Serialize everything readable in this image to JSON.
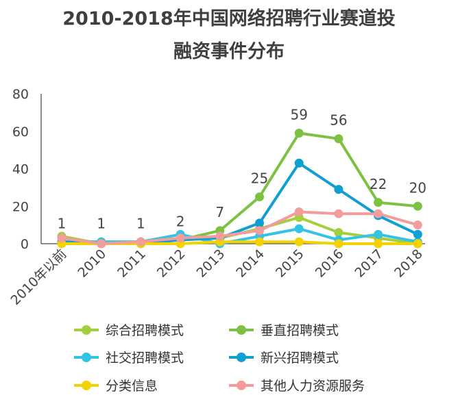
{
  "chart_data": {
    "type": "line",
    "title_lines": [
      "2010-2018年中国网络招聘行业赛道投",
      "融资事件分布"
    ],
    "categories": [
      "2010年以前",
      "2010",
      "2011",
      "2012",
      "2013",
      "2014",
      "2015",
      "2016",
      "2017",
      "2018"
    ],
    "ylim": [
      0,
      80
    ],
    "yticks": [
      0,
      20,
      40,
      60,
      80
    ],
    "grid": false,
    "legend_position": "bottom",
    "series": [
      {
        "name": "综合招聘模式",
        "color": "#a4cf3c",
        "values": [
          4,
          0,
          1,
          2,
          3,
          8,
          14,
          6,
          3,
          0
        ]
      },
      {
        "name": "垂直招聘模式",
        "color": "#7cc242",
        "values": [
          1,
          1,
          1,
          2,
          7,
          25,
          59,
          56,
          22,
          20
        ]
      },
      {
        "name": "社交招聘模式",
        "color": "#35c3e5",
        "values": [
          1,
          1,
          1,
          5,
          0,
          4,
          8,
          2,
          5,
          1
        ]
      },
      {
        "name": "新兴招聘模式",
        "color": "#109fd3",
        "values": [
          1,
          0,
          0,
          2,
          3,
          11,
          43,
          29,
          15,
          5
        ]
      },
      {
        "name": "分类信息",
        "color": "#f3d200",
        "values": [
          0,
          0,
          0,
          0,
          1,
          1,
          1,
          0,
          0,
          0
        ]
      },
      {
        "name": "其他人力资源服务",
        "color": "#f29c9c",
        "values": [
          3,
          0,
          1,
          3,
          4,
          7,
          17,
          16,
          16,
          10
        ]
      }
    ],
    "data_labels": [
      "1",
      "1",
      "1",
      "2",
      "7",
      "25",
      "59",
      "56",
      "22",
      "20"
    ],
    "data_label_values": [
      1,
      1,
      1,
      2,
      7,
      25,
      59,
      56,
      22,
      20
    ]
  }
}
